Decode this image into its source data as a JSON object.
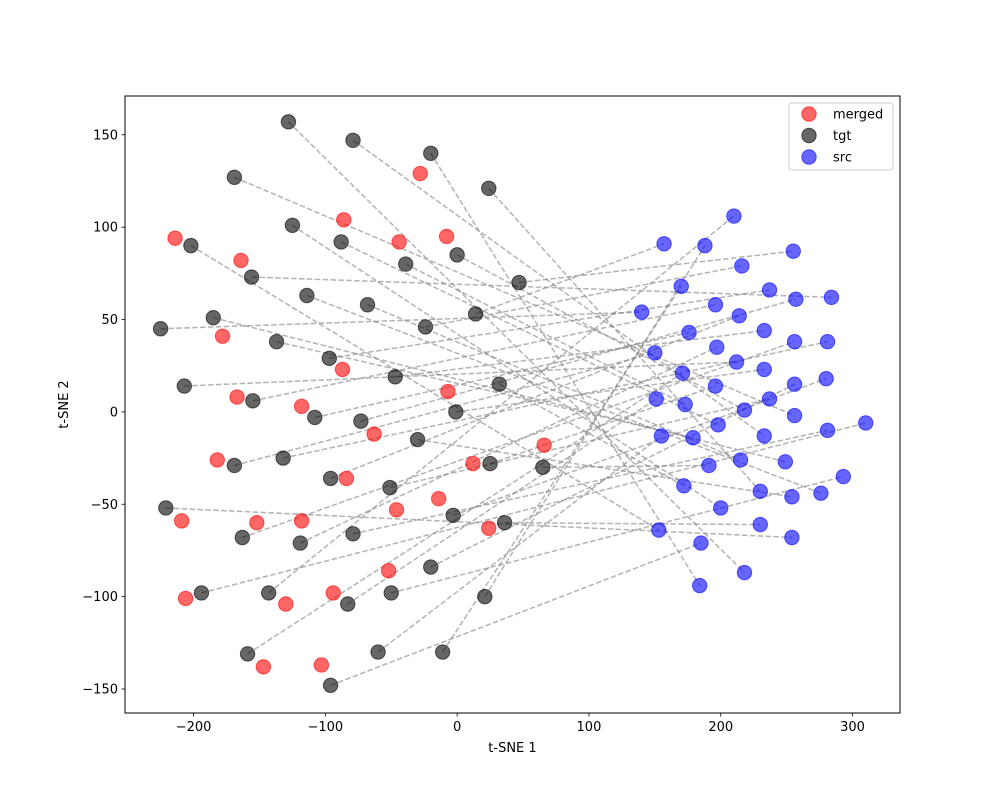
{
  "chart_data": {
    "type": "scatter",
    "title": "",
    "xlabel": "t-SNE 1",
    "ylabel": "t-SNE 2",
    "xlim": [
      -252,
      336
    ],
    "ylim": [
      -163,
      171
    ],
    "xticks": [
      -200,
      -100,
      0,
      100,
      200,
      300
    ],
    "yticks": [
      -150,
      -100,
      -50,
      0,
      50,
      100,
      150
    ],
    "legend_position": "top-right",
    "colors": {
      "merged": "#ff0000",
      "tgt": "#000000",
      "src": "#0000ff",
      "link": "#808080"
    },
    "series": [
      {
        "name": "merged",
        "points": [
          [
            -214,
            94
          ],
          [
            -164,
            82
          ],
          [
            -178,
            41
          ],
          [
            -167,
            8
          ],
          [
            -182,
            -26
          ],
          [
            -209,
            -59
          ],
          [
            -206,
            -101
          ],
          [
            -152,
            -60
          ],
          [
            -147,
            -138
          ],
          [
            -130,
            -104
          ],
          [
            -118,
            -59
          ],
          [
            -118,
            3
          ],
          [
            -86,
            104
          ],
          [
            -87,
            23
          ],
          [
            -84,
            -36
          ],
          [
            -94,
            -98
          ],
          [
            -103,
            -137
          ],
          [
            -63,
            -12
          ],
          [
            -52,
            -86
          ],
          [
            -46,
            -53
          ],
          [
            -44,
            92
          ],
          [
            -28,
            129
          ],
          [
            -14,
            -47
          ],
          [
            -7,
            11
          ],
          [
            -8,
            95
          ],
          [
            12,
            -28
          ],
          [
            24,
            -63
          ],
          [
            66,
            -18
          ]
        ]
      },
      {
        "name": "tgt",
        "points": [
          [
            -128,
            157
          ],
          [
            -79,
            147
          ],
          [
            -20,
            140
          ],
          [
            -169,
            127
          ],
          [
            24,
            121
          ],
          [
            -125,
            101
          ],
          [
            -88,
            92
          ],
          [
            -202,
            90
          ],
          [
            -39,
            80
          ],
          [
            0,
            85
          ],
          [
            -156,
            73
          ],
          [
            47,
            70
          ],
          [
            -114,
            63
          ],
          [
            -68,
            58
          ],
          [
            -185,
            51
          ],
          [
            14,
            53
          ],
          [
            -24,
            46
          ],
          [
            -225,
            45
          ],
          [
            -137,
            38
          ],
          [
            -97,
            29
          ],
          [
            -47,
            19
          ],
          [
            -207,
            14
          ],
          [
            32,
            15
          ],
          [
            -155,
            6
          ],
          [
            -108,
            -3
          ],
          [
            -73,
            -5
          ],
          [
            -1,
            0
          ],
          [
            -30,
            -15
          ],
          [
            -132,
            -25
          ],
          [
            -169,
            -29
          ],
          [
            25,
            -28
          ],
          [
            65,
            -30
          ],
          [
            -96,
            -36
          ],
          [
            -51,
            -41
          ],
          [
            -221,
            -52
          ],
          [
            -3,
            -56
          ],
          [
            36,
            -60
          ],
          [
            -163,
            -68
          ],
          [
            -119,
            -71
          ],
          [
            -79,
            -66
          ],
          [
            -20,
            -84
          ],
          [
            -194,
            -98
          ],
          [
            -143,
            -98
          ],
          [
            -50,
            -98
          ],
          [
            -83,
            -104
          ],
          [
            21,
            -100
          ],
          [
            -159,
            -131
          ],
          [
            -60,
            -130
          ],
          [
            -11,
            -130
          ],
          [
            -96,
            -148
          ]
        ]
      },
      {
        "name": "src",
        "points": [
          [
            210,
            106
          ],
          [
            157,
            91
          ],
          [
            188,
            90
          ],
          [
            255,
            87
          ],
          [
            216,
            79
          ],
          [
            170,
            68
          ],
          [
            237,
            66
          ],
          [
            257,
            61
          ],
          [
            284,
            62
          ],
          [
            140,
            54
          ],
          [
            196,
            58
          ],
          [
            214,
            52
          ],
          [
            176,
            43
          ],
          [
            233,
            44
          ],
          [
            150,
            32
          ],
          [
            256,
            38
          ],
          [
            281,
            38
          ],
          [
            197,
            35
          ],
          [
            212,
            27
          ],
          [
            171,
            21
          ],
          [
            233,
            23
          ],
          [
            196,
            14
          ],
          [
            256,
            15
          ],
          [
            280,
            18
          ],
          [
            151,
            7
          ],
          [
            173,
            4
          ],
          [
            237,
            7
          ],
          [
            218,
            1
          ],
          [
            256,
            -2
          ],
          [
            310,
            -6
          ],
          [
            198,
            -7
          ],
          [
            155,
            -13
          ],
          [
            179,
            -14
          ],
          [
            233,
            -13
          ],
          [
            281,
            -10
          ],
          [
            191,
            -29
          ],
          [
            215,
            -26
          ],
          [
            249,
            -27
          ],
          [
            293,
            -35
          ],
          [
            172,
            -40
          ],
          [
            230,
            -43
          ],
          [
            254,
            -46
          ],
          [
            276,
            -44
          ],
          [
            200,
            -52
          ],
          [
            153,
            -64
          ],
          [
            230,
            -61
          ],
          [
            254,
            -68
          ],
          [
            185,
            -71
          ],
          [
            218,
            -87
          ],
          [
            184,
            -94
          ]
        ]
      }
    ],
    "links": [
      [
        [
          -128,
          157
        ],
        [
          218,
          -87
        ]
      ],
      [
        [
          -79,
          147
        ],
        [
          233,
          -13
        ]
      ],
      [
        [
          -20,
          140
        ],
        [
          184,
          -94
        ]
      ],
      [
        [
          -169,
          127
        ],
        [
          256,
          -2
        ]
      ],
      [
        [
          24,
          121
        ],
        [
          230,
          -43
        ]
      ],
      [
        [
          -125,
          101
        ],
        [
          200,
          -52
        ]
      ],
      [
        [
          -88,
          92
        ],
        [
          198,
          -7
        ]
      ],
      [
        [
          -202,
          90
        ],
        [
          153,
          -64
        ]
      ],
      [
        [
          -39,
          80
        ],
        [
          173,
          4
        ]
      ],
      [
        [
          0,
          85
        ],
        [
          218,
          1
        ]
      ],
      [
        [
          -156,
          73
        ],
        [
          284,
          62
        ]
      ],
      [
        [
          47,
          70
        ],
        [
          255,
          87
        ]
      ],
      [
        [
          -114,
          63
        ],
        [
          276,
          -44
        ]
      ],
      [
        [
          -68,
          58
        ],
        [
          215,
          -26
        ]
      ],
      [
        [
          -185,
          51
        ],
        [
          249,
          -27
        ]
      ],
      [
        [
          14,
          53
        ],
        [
          157,
          91
        ]
      ],
      [
        [
          -24,
          46
        ],
        [
          216,
          79
        ]
      ],
      [
        [
          -225,
          45
        ],
        [
          140,
          54
        ]
      ],
      [
        [
          -137,
          38
        ],
        [
          179,
          -14
        ]
      ],
      [
        [
          -97,
          29
        ],
        [
          237,
          66
        ]
      ],
      [
        [
          -47,
          19
        ],
        [
          233,
          44
        ]
      ],
      [
        [
          -207,
          14
        ],
        [
          212,
          27
        ]
      ],
      [
        [
          32,
          15
        ],
        [
          172,
          -40
        ]
      ],
      [
        [
          -155,
          6
        ],
        [
          196,
          58
        ]
      ],
      [
        [
          -108,
          -3
        ],
        [
          176,
          43
        ]
      ],
      [
        [
          -73,
          -5
        ],
        [
          257,
          61
        ]
      ],
      [
        [
          -1,
          0
        ],
        [
          233,
          23
        ]
      ],
      [
        [
          -30,
          -15
        ],
        [
          254,
          -46
        ]
      ],
      [
        [
          -132,
          -25
        ],
        [
          281,
          38
        ]
      ],
      [
        [
          -169,
          -29
        ],
        [
          150,
          32
        ]
      ],
      [
        [
          25,
          -28
        ],
        [
          196,
          14
        ]
      ],
      [
        [
          65,
          -30
        ],
        [
          191,
          -29
        ]
      ],
      [
        [
          -96,
          -36
        ],
        [
          214,
          52
        ]
      ],
      [
        [
          -51,
          -41
        ],
        [
          237,
          7
        ]
      ],
      [
        [
          -221,
          -52
        ],
        [
          254,
          -68
        ]
      ],
      [
        [
          -3,
          -56
        ],
        [
          280,
          18
        ]
      ],
      [
        [
          36,
          -60
        ],
        [
          230,
          -61
        ]
      ],
      [
        [
          -163,
          -68
        ],
        [
          256,
          38
        ]
      ],
      [
        [
          -119,
          -71
        ],
        [
          197,
          35
        ]
      ],
      [
        [
          -79,
          -66
        ],
        [
          281,
          -10
        ]
      ],
      [
        [
          -20,
          -84
        ],
        [
          256,
          15
        ]
      ],
      [
        [
          -194,
          -98
        ],
        [
          310,
          -6
        ]
      ],
      [
        [
          -143,
          -98
        ],
        [
          210,
          106
        ]
      ],
      [
        [
          -50,
          -98
        ],
        [
          293,
          -35
        ]
      ],
      [
        [
          -83,
          -104
        ],
        [
          151,
          7
        ]
      ],
      [
        [
          21,
          -100
        ],
        [
          188,
          90
        ]
      ],
      [
        [
          -159,
          -131
        ],
        [
          171,
          21
        ]
      ],
      [
        [
          -60,
          -130
        ],
        [
          155,
          -13
        ]
      ],
      [
        [
          -11,
          -130
        ],
        [
          170,
          68
        ]
      ],
      [
        [
          -96,
          -148
        ],
        [
          185,
          -71
        ]
      ]
    ]
  }
}
